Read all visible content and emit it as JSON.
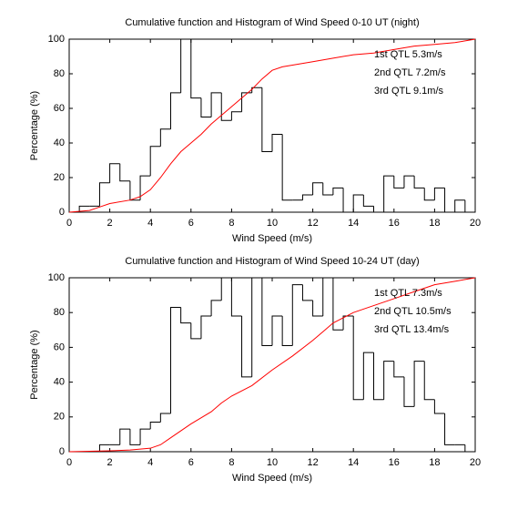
{
  "chart_data": [
    {
      "type": "histogram",
      "title": "Cumulative function and Histogram of Wind Speed 0-10 UT (night)",
      "x_label": "Wind Speed (m/s)",
      "y_label": "Percentage (%)",
      "bins": [
        0,
        0.5,
        1,
        1.5,
        2,
        2.5,
        3,
        3.5,
        4,
        4.5,
        5,
        5.5,
        6,
        6.5,
        7,
        7.5,
        8,
        8.5,
        9,
        9.5,
        10,
        10.5,
        11,
        11.5,
        12,
        12.5,
        13,
        13.5,
        14,
        14.5,
        15,
        15.5,
        16,
        16.5,
        17,
        17.5,
        18,
        18.5,
        19,
        19.5,
        20
      ],
      "values": [
        0,
        3.5,
        3.5,
        17,
        28,
        18,
        7,
        21,
        38,
        48,
        69,
        100,
        66,
        55,
        69,
        53,
        58,
        69,
        72,
        35,
        45,
        7,
        7,
        10,
        17,
        10,
        14,
        0,
        10,
        3.5,
        0,
        21,
        14,
        21,
        14,
        7,
        14,
        0,
        7,
        0
      ],
      "color": "#000000",
      "cumulative": {
        "x": [
          0,
          1,
          1.5,
          2,
          3,
          3.5,
          4,
          4.5,
          5,
          5.5,
          6,
          6.5,
          7,
          7.5,
          8,
          8.5,
          9,
          9.5,
          10,
          10.5,
          11,
          12,
          13,
          14,
          15,
          16,
          17,
          18,
          19,
          20
        ],
        "values": [
          0,
          1,
          3,
          5,
          7,
          9,
          13,
          20,
          28,
          35,
          40,
          45,
          51,
          56,
          61,
          66,
          71,
          77,
          82,
          84,
          85,
          87,
          89,
          91,
          92,
          94,
          96,
          97,
          98,
          100
        ],
        "color": "#ff0000"
      },
      "annotations": [
        "1st QTL 5.3m/s",
        "2nd QTL 7.2m/s",
        "3rd QTL 9.1m/s"
      ],
      "annotation_color": "#ff0000",
      "xlim": [
        0,
        20
      ],
      "ylim": [
        0,
        100
      ],
      "xticks": [
        0,
        2,
        4,
        6,
        8,
        10,
        12,
        14,
        16,
        18,
        20
      ],
      "yticks": [
        0,
        20,
        40,
        60,
        80,
        100
      ]
    },
    {
      "type": "histogram",
      "title": "Cumulative function and Histogram of Wind Speed 10-24 UT (day)",
      "x_label": "Wind Speed (m/s)",
      "y_label": "Percentage (%)",
      "bins": [
        0,
        0.5,
        1,
        1.5,
        2,
        2.5,
        3,
        3.5,
        4,
        4.5,
        5,
        5.5,
        6,
        6.5,
        7,
        7.5,
        8,
        8.5,
        9,
        9.5,
        10,
        10.5,
        11,
        11.5,
        12,
        12.5,
        13,
        13.5,
        14,
        14.5,
        15,
        15.5,
        16,
        16.5,
        17,
        17.5,
        18,
        18.5,
        19,
        19.5,
        20
      ],
      "values": [
        0,
        0,
        0,
        4,
        4,
        13,
        4,
        13,
        17,
        22,
        83,
        74,
        65,
        78,
        87,
        100,
        78,
        43,
        100,
        61,
        78,
        61,
        96,
        87,
        78,
        100,
        70,
        78,
        30,
        57,
        30,
        52,
        43,
        26,
        52,
        30,
        22,
        4,
        4,
        0
      ],
      "color": "#000000",
      "cumulative": {
        "x": [
          0,
          2,
          3,
          4,
          4.5,
          5,
          5.5,
          6,
          7,
          7.5,
          8,
          9,
          10,
          11,
          12,
          12.5,
          13,
          13.5,
          14,
          15,
          16,
          17,
          18,
          19,
          20
        ],
        "values": [
          0,
          0.5,
          1,
          2,
          4,
          8,
          12,
          16,
          23,
          28,
          32,
          38,
          47,
          55,
          64,
          69,
          74,
          77,
          80,
          84,
          88,
          92,
          96,
          98,
          100
        ],
        "color": "#ff0000"
      },
      "annotations": [
        "1st QTL 7.3m/s",
        "2nd QTL 10.5m/s",
        "3rd QTL 13.4m/s"
      ],
      "annotation_color": "#ff0000",
      "xlim": [
        0,
        20
      ],
      "ylim": [
        0,
        100
      ],
      "xticks": [
        0,
        2,
        4,
        6,
        8,
        10,
        12,
        14,
        16,
        18,
        20
      ],
      "yticks": [
        0,
        20,
        40,
        60,
        80,
        100
      ]
    }
  ]
}
